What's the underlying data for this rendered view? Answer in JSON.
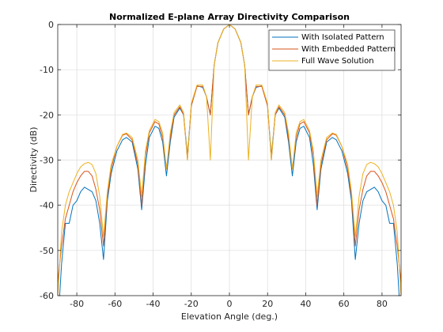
{
  "chart_data": {
    "type": "line",
    "title": "Normalized E-plane Array Directivity Comparison",
    "xlabel": "Elevation Angle (deg.)",
    "ylabel": "Directivity (dB)",
    "xlim": [
      -90,
      90
    ],
    "ylim": [
      -60,
      0
    ],
    "xticks": [
      -80,
      -60,
      -40,
      -20,
      0,
      20,
      40,
      60,
      80
    ],
    "yticks": [
      0,
      -10,
      -20,
      -30,
      -40,
      -50,
      -60
    ],
    "grid": true,
    "legend_position": "top-right",
    "series": [
      {
        "name": "With Isolated Pattern",
        "color": "#0072BD",
        "points": [
          [
            0,
            0
          ],
          [
            3,
            -1
          ],
          [
            6,
            -4
          ],
          [
            8,
            -9
          ],
          [
            10,
            -20
          ],
          [
            12,
            -16
          ],
          [
            14,
            -13.9
          ],
          [
            17,
            -13.6
          ],
          [
            20,
            -18
          ],
          [
            22,
            -29
          ],
          [
            24,
            -20
          ],
          [
            26,
            -18.5
          ],
          [
            29,
            -20.5
          ],
          [
            31,
            -26
          ],
          [
            33,
            -33.5
          ],
          [
            35,
            -26
          ],
          [
            37,
            -23
          ],
          [
            39,
            -22.5
          ],
          [
            42,
            -25
          ],
          [
            44,
            -31
          ],
          [
            46,
            -41
          ],
          [
            48,
            -32
          ],
          [
            51,
            -26
          ],
          [
            54,
            -25
          ],
          [
            56,
            -25.5
          ],
          [
            59,
            -28
          ],
          [
            62,
            -33
          ],
          [
            64,
            -39
          ],
          [
            66,
            -52
          ],
          [
            68,
            -44
          ],
          [
            70,
            -39
          ],
          [
            72,
            -37
          ],
          [
            74,
            -36.5
          ],
          [
            76,
            -36
          ],
          [
            78,
            -37
          ],
          [
            80,
            -39
          ],
          [
            82,
            -40
          ],
          [
            84,
            -44
          ],
          [
            86,
            -44
          ],
          [
            88,
            -53
          ],
          [
            89,
            -60
          ]
        ]
      },
      {
        "name": "With Embedded Pattern",
        "color": "#D95319",
        "points": [
          [
            0,
            0
          ],
          [
            3,
            -1
          ],
          [
            6,
            -4
          ],
          [
            8,
            -9
          ],
          [
            10,
            -20
          ],
          [
            12,
            -16
          ],
          [
            14,
            -13.7
          ],
          [
            17,
            -13.7
          ],
          [
            20,
            -18
          ],
          [
            22,
            -30
          ],
          [
            24,
            -20
          ],
          [
            26,
            -18.2
          ],
          [
            29,
            -20
          ],
          [
            31,
            -25
          ],
          [
            33,
            -32
          ],
          [
            35,
            -25
          ],
          [
            37,
            -22
          ],
          [
            39,
            -21.5
          ],
          [
            42,
            -24
          ],
          [
            44,
            -29
          ],
          [
            46,
            -40
          ],
          [
            48,
            -31
          ],
          [
            51,
            -25.5
          ],
          [
            54,
            -24.2
          ],
          [
            56,
            -24.5
          ],
          [
            59,
            -27
          ],
          [
            62,
            -32
          ],
          [
            64,
            -38
          ],
          [
            66,
            -49
          ],
          [
            68,
            -41
          ],
          [
            70,
            -36.5
          ],
          [
            72,
            -33.5
          ],
          [
            74,
            -32.5
          ],
          [
            76,
            -32.5
          ],
          [
            78,
            -33.5
          ],
          [
            80,
            -35
          ],
          [
            82,
            -37
          ],
          [
            84,
            -40
          ],
          [
            86,
            -43
          ],
          [
            88,
            -49
          ],
          [
            90,
            -57
          ]
        ]
      },
      {
        "name": "Full Wave Solution",
        "color": "#EDB120",
        "points": [
          [
            0,
            0
          ],
          [
            3,
            -1
          ],
          [
            6,
            -4
          ],
          [
            8,
            -9
          ],
          [
            10,
            -30
          ],
          [
            12,
            -16
          ],
          [
            14,
            -13.4
          ],
          [
            17,
            -13.4
          ],
          [
            20,
            -17.5
          ],
          [
            22,
            -30
          ],
          [
            24,
            -19.5
          ],
          [
            26,
            -17.8
          ],
          [
            29,
            -19.5
          ],
          [
            31,
            -24
          ],
          [
            33,
            -32
          ],
          [
            35,
            -24
          ],
          [
            37,
            -21.5
          ],
          [
            39,
            -21
          ],
          [
            42,
            -23.5
          ],
          [
            44,
            -28
          ],
          [
            46,
            -38
          ],
          [
            48,
            -30
          ],
          [
            51,
            -25
          ],
          [
            54,
            -24
          ],
          [
            56,
            -24.3
          ],
          [
            59,
            -27
          ],
          [
            62,
            -31
          ],
          [
            64,
            -37
          ],
          [
            66,
            -47
          ],
          [
            68,
            -38
          ],
          [
            70,
            -33
          ],
          [
            72,
            -31
          ],
          [
            74,
            -30.5
          ],
          [
            76,
            -30.8
          ],
          [
            78,
            -31.5
          ],
          [
            80,
            -33
          ],
          [
            82,
            -35
          ],
          [
            84,
            -37
          ],
          [
            86,
            -40
          ],
          [
            88,
            -46
          ],
          [
            90,
            -60
          ]
        ]
      }
    ]
  }
}
